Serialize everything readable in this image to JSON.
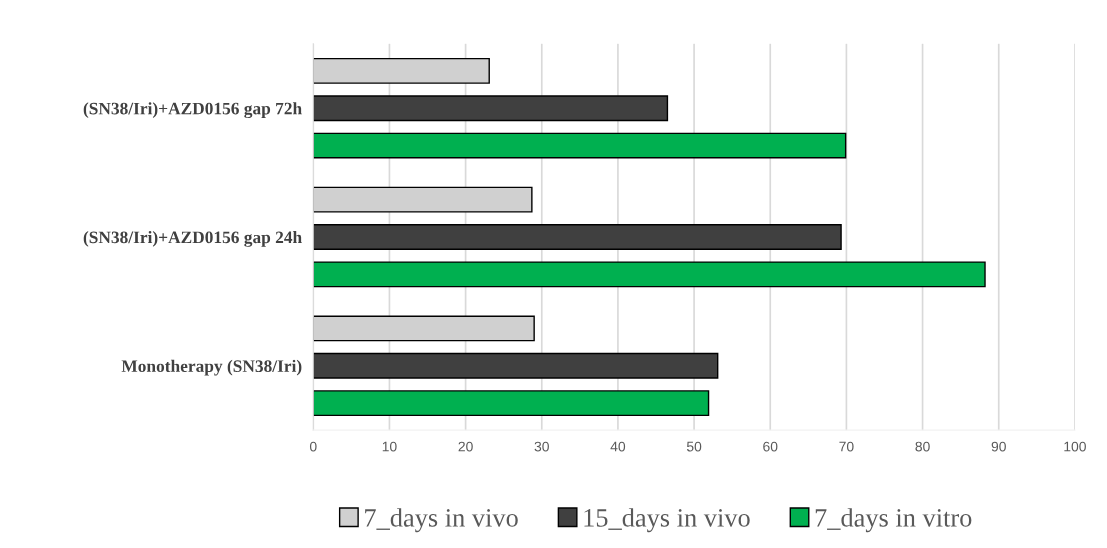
{
  "chart_data": {
    "type": "bar",
    "orientation": "horizontal",
    "categories": [
      "(SN38/Iri)+AZD0156 gap 72h",
      "(SN38/Iri)+AZD0156 gap 24h",
      "Monotherapy (SN38/Iri)"
    ],
    "series": [
      {
        "name": "7_days in vivo",
        "color": "#d0d0d0",
        "values": [
          23.1,
          28.7,
          29.0
        ]
      },
      {
        "name": "15_days in vivo",
        "color": "#404040",
        "values": [
          46.5,
          69.3,
          53.1
        ]
      },
      {
        "name": "7_days in vitro",
        "color": "#00b050",
        "values": [
          69.9,
          88.2,
          51.9
        ]
      }
    ],
    "xlim": [
      0,
      100
    ],
    "xticks": [
      0,
      10,
      20,
      30,
      40,
      50,
      60,
      70,
      80,
      90,
      100
    ],
    "grid": "x",
    "legend": "bottom"
  }
}
